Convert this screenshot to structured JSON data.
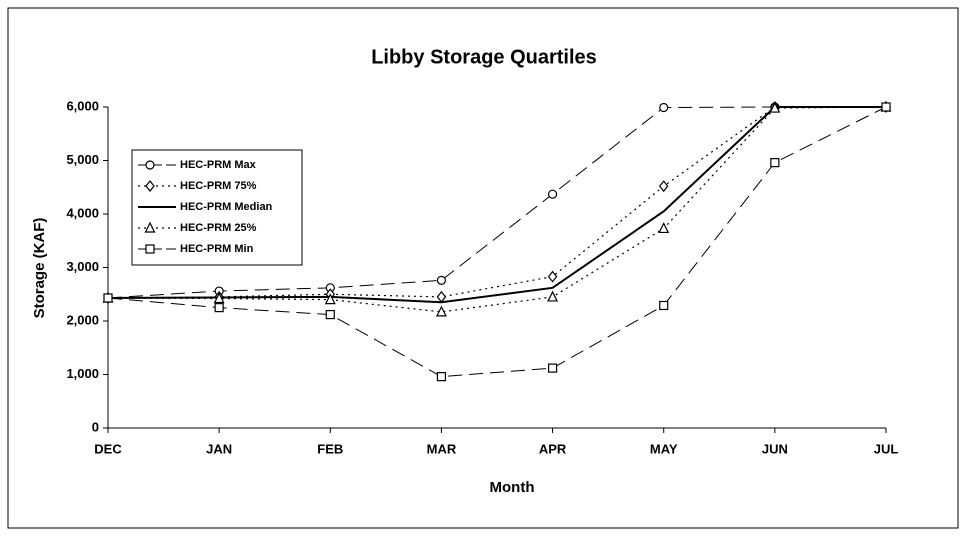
{
  "chart_data": {
    "type": "line",
    "title": "Libby Storage Quartiles",
    "x_label": "Month",
    "y_label": "Storage (KAF)",
    "categories": [
      "DEC",
      "JAN",
      "FEB",
      "MAR",
      "APR",
      "MAY",
      "JUN",
      "JUL"
    ],
    "ylim": [
      0,
      6000
    ],
    "yticks": [
      0,
      {
        "value": 1000,
        "label": "1,000"
      },
      {
        "value": 2000,
        "label": "2,000"
      },
      {
        "value": 3000,
        "label": "3,000"
      },
      {
        "value": 4000,
        "label": "4,000"
      },
      {
        "value": 5000,
        "label": "5,000"
      },
      {
        "value": 6000,
        "label": "6,000"
      }
    ],
    "legend": "left",
    "series": [
      {
        "name": "HEC-PRM Max",
        "color": "#000000",
        "marker": "circle",
        "dash": "long",
        "values": [
          2430,
          2560,
          2620,
          2760,
          4370,
          5990,
          6000,
          6000
        ]
      },
      {
        "name": "HEC-PRM 75%",
        "color": "#000000",
        "marker": "diamond",
        "dash": "dotted",
        "values": [
          2430,
          2450,
          2500,
          2450,
          2830,
          4520,
          6000,
          6000
        ]
      },
      {
        "name": "HEC-PRM Median",
        "color": "#000000",
        "marker": "none",
        "dash": "solid",
        "values": [
          2430,
          2440,
          2450,
          2350,
          2620,
          4050,
          6000,
          6000
        ]
      },
      {
        "name": "HEC-PRM 25%",
        "color": "#000000",
        "marker": "triangle",
        "dash": "dotted",
        "values": [
          2430,
          2420,
          2400,
          2170,
          2450,
          3730,
          5980,
          6000
        ]
      },
      {
        "name": "HEC-PRM Min",
        "color": "#000000",
        "marker": "square",
        "dash": "long",
        "values": [
          2430,
          2250,
          2120,
          960,
          1120,
          2290,
          4960,
          6000
        ]
      }
    ]
  }
}
